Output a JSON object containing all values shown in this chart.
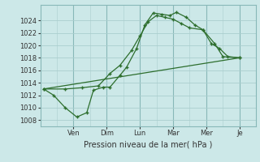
{
  "bg_color": "#cce8e8",
  "grid_color": "#aacece",
  "line_color": "#2d6e2d",
  "marker_color": "#2d6e2d",
  "xlabel": "Pression niveau de la mer( hPa )",
  "ylim": [
    1007,
    1026.5
  ],
  "yticks": [
    1008,
    1010,
    1012,
    1014,
    1016,
    1018,
    1020,
    1022,
    1024
  ],
  "day_labels": [
    "Ven",
    "Dim",
    "Lun",
    "Mar",
    "Mer",
    "Je"
  ],
  "day_positions": [
    2,
    4,
    6,
    8,
    10,
    12
  ],
  "xlim": [
    0,
    13
  ],
  "series1_x": [
    0.2,
    0.8,
    1.5,
    2.2,
    2.8,
    3.2,
    3.8,
    4.2,
    4.8,
    5.2,
    5.8,
    6.3,
    6.8,
    7.3,
    7.8,
    8.2,
    8.8,
    9.3,
    9.8,
    10.3,
    10.8,
    11.3,
    12.0
  ],
  "series1_y": [
    1013.0,
    1012.0,
    1010.0,
    1008.5,
    1009.2,
    1012.8,
    1013.3,
    1013.3,
    1015.2,
    1016.5,
    1019.5,
    1023.3,
    1025.2,
    1025.0,
    1024.8,
    1025.3,
    1024.5,
    1023.3,
    1022.5,
    1020.3,
    1019.5,
    1018.2,
    1018.0
  ],
  "series2_x": [
    0.2,
    1.5,
    2.5,
    3.5,
    4.2,
    4.8,
    5.5,
    6.0,
    6.5,
    7.0,
    7.5,
    8.0,
    8.5,
    9.0,
    9.8,
    10.5,
    11.0,
    12.0
  ],
  "series2_y": [
    1013.0,
    1013.0,
    1013.2,
    1013.5,
    1015.5,
    1016.8,
    1019.2,
    1021.5,
    1023.8,
    1024.8,
    1024.5,
    1024.2,
    1023.5,
    1022.8,
    1022.5,
    1020.3,
    1018.2,
    1018.0
  ],
  "series3_x": [
    0.2,
    12.0
  ],
  "series3_y": [
    1013.0,
    1018.0
  ]
}
